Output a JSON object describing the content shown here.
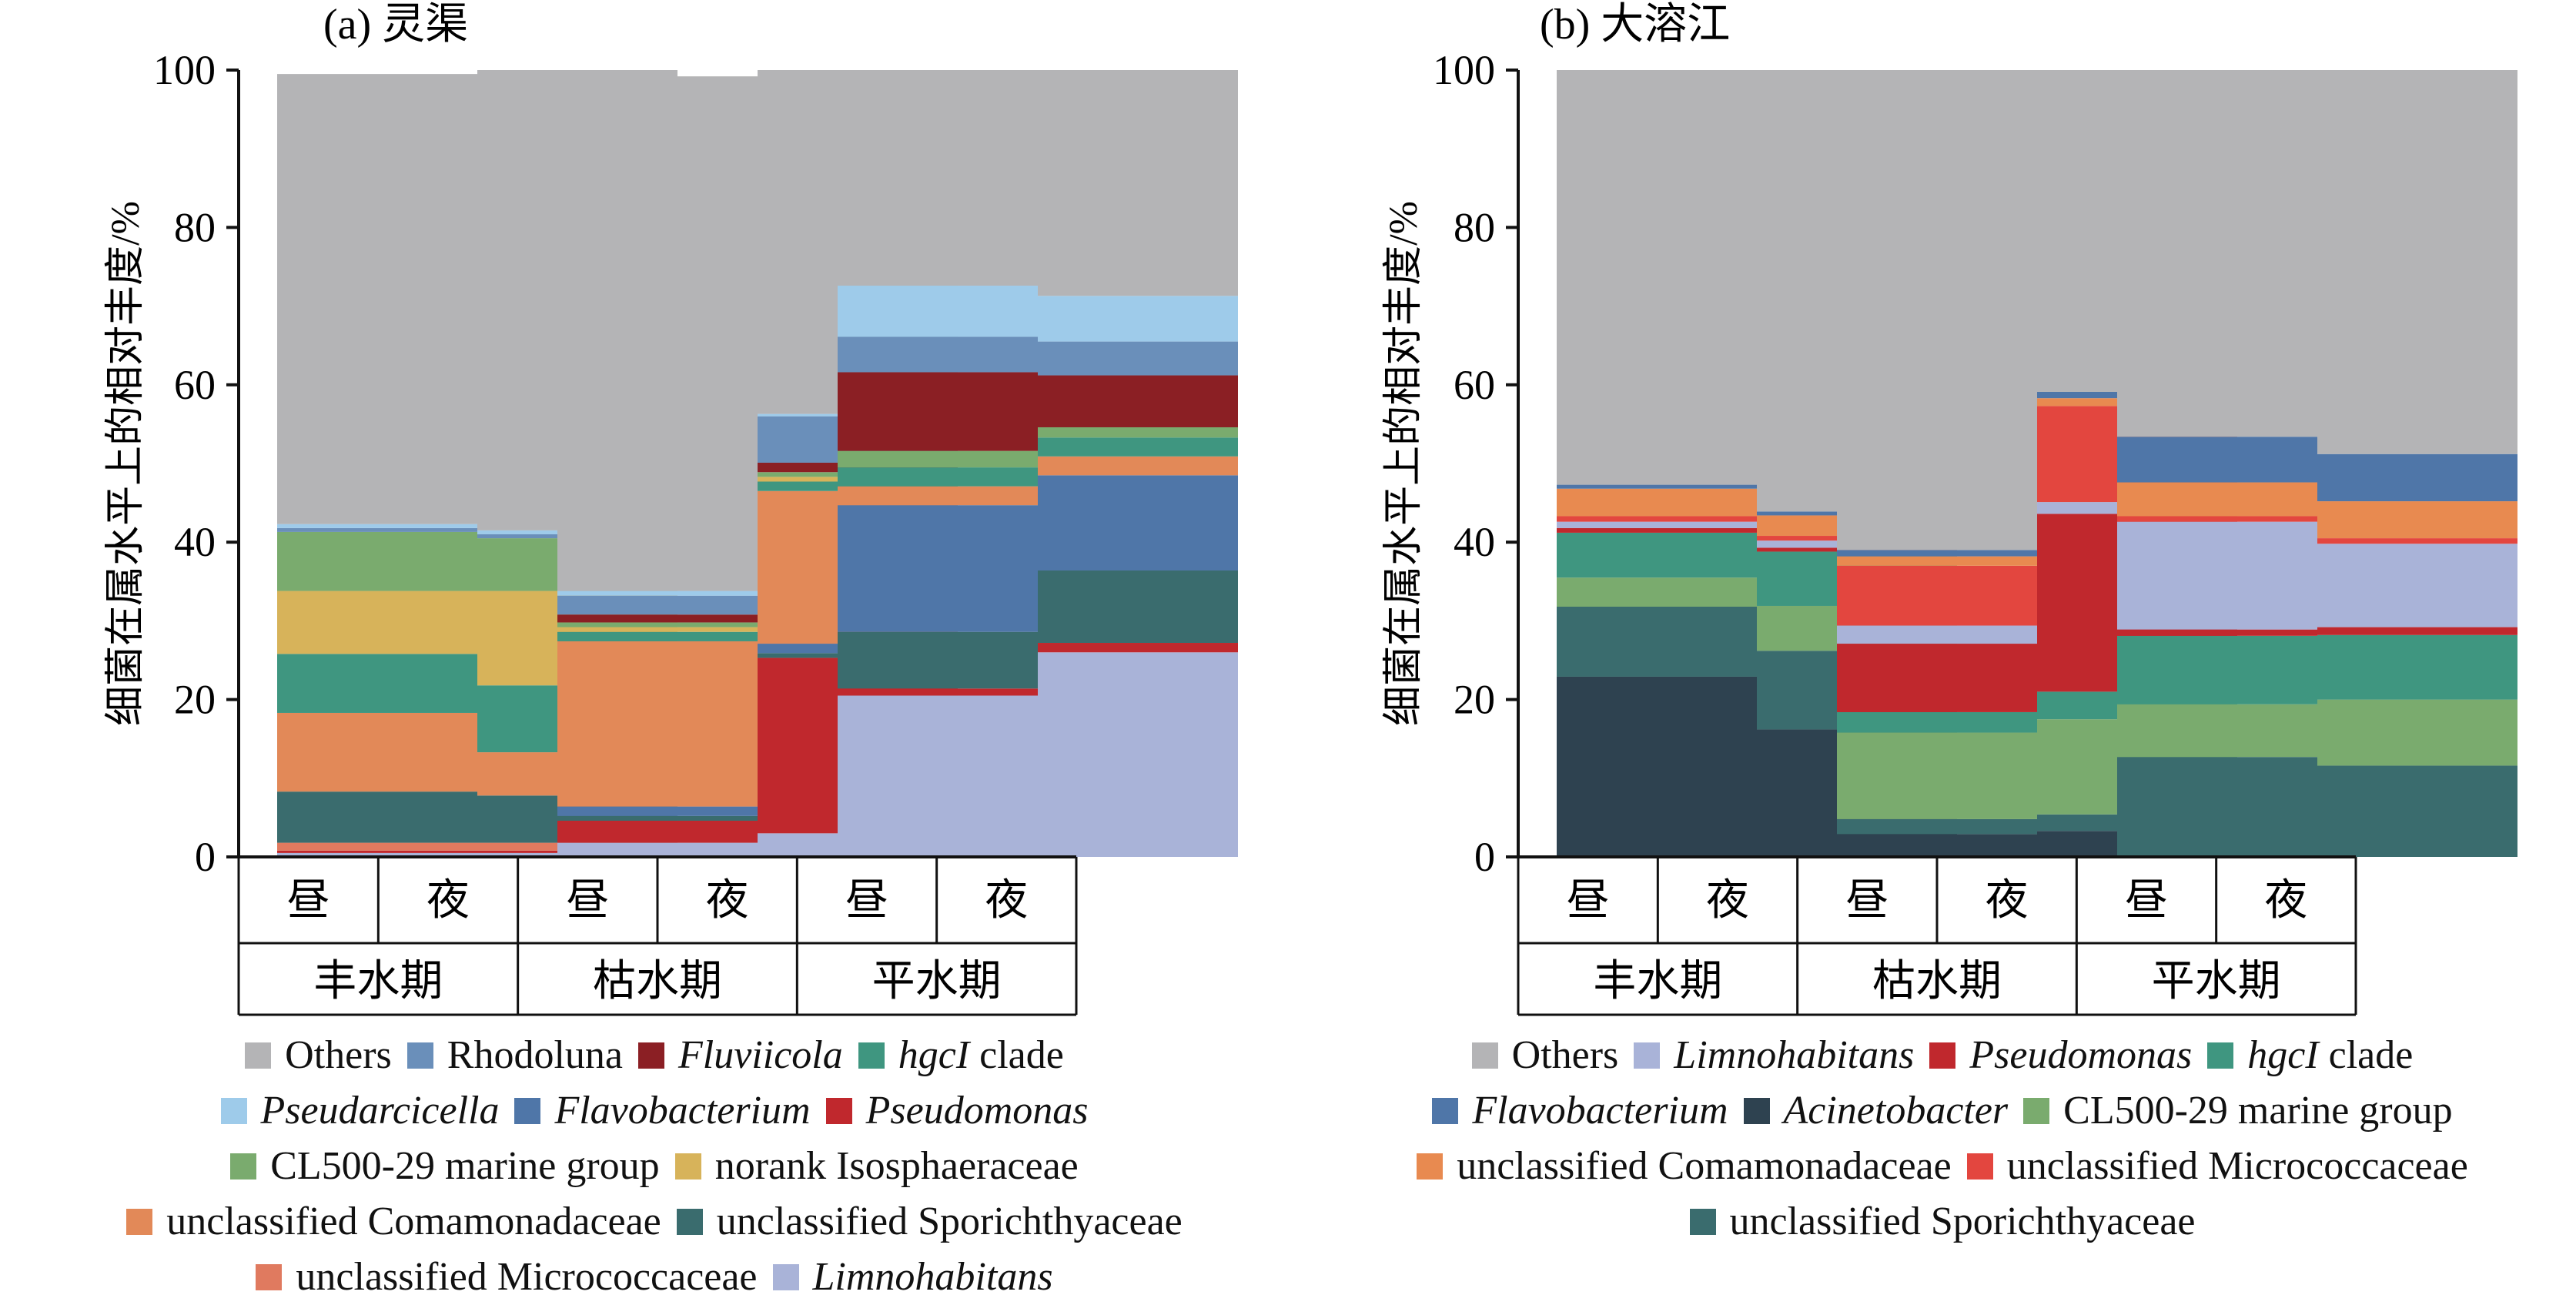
{
  "chart_data": [
    {
      "type": "bar",
      "stacked": true,
      "title": "(a) 灵渠",
      "ylabel": "细菌在属水平上的相对丰度/%",
      "ylim": [
        0,
        100
      ],
      "yticks": [
        "0",
        "20",
        "40",
        "60",
        "80",
        "100"
      ],
      "categories": [
        "昼",
        "夜",
        "昼",
        "夜",
        "昼",
        "夜"
      ],
      "groups": [
        "丰水期",
        "枯水期",
        "平水期"
      ],
      "series": [
        {
          "name": "Limnohabitans",
          "italic": true,
          "color": "#a9b3d8",
          "values": [
            0.5,
            0.5,
            1.8,
            3.0,
            20.5,
            26.0
          ]
        },
        {
          "name": "Pseudomonas",
          "italic": true,
          "color": "#c0282d",
          "values": [
            0.3,
            0.3,
            2.8,
            22.3,
            0.9,
            1.2
          ]
        },
        {
          "name": "unclassified Micrococcaceae",
          "italic": false,
          "color": "#e07a5f",
          "values": [
            1.0,
            1.0,
            0,
            0,
            0,
            0
          ]
        },
        {
          "name": "unclassified Sporichthyaceae",
          "italic": false,
          "color": "#3a6c6e",
          "values": [
            6.5,
            6.0,
            0.6,
            0.6,
            7.2,
            9.2
          ]
        },
        {
          "name": "Flavobacterium",
          "italic": true,
          "color": "#4f76a8",
          "values": [
            0,
            0,
            1.2,
            1.2,
            16.1,
            12.1
          ]
        },
        {
          "name": "unclassified Comamonadaceae",
          "italic": false,
          "color": "#e28958",
          "values": [
            10.0,
            5.5,
            21.0,
            19.4,
            2.4,
            2.4
          ]
        },
        {
          "name": "hgcI clade",
          "italic": true,
          "color": "#3f9680",
          "values": [
            7.5,
            8.5,
            1.2,
            1.2,
            2.4,
            2.4
          ]
        },
        {
          "name": "norank Isosphaeraceae",
          "italic": false,
          "color": "#d7b35a",
          "values": [
            8.0,
            12.0,
            0.6,
            0.6,
            0,
            0
          ]
        },
        {
          "name": "CL500-29 marine group",
          "italic": false,
          "color": "#7aab6e",
          "values": [
            7.5,
            6.7,
            0.6,
            0.6,
            2.1,
            1.3
          ]
        },
        {
          "name": "Fluviicola",
          "italic": true,
          "color": "#8b1f24",
          "values": [
            0,
            0,
            1.0,
            1.2,
            10.0,
            6.6
          ]
        },
        {
          "name": "Rhodoluna",
          "italic": false,
          "color": "#6a8fba",
          "values": [
            0.5,
            0.5,
            2.4,
            5.9,
            4.5,
            4.3
          ]
        },
        {
          "name": "Pseudarcicella",
          "italic": true,
          "color": "#9ecbea",
          "values": [
            0.5,
            0.5,
            0.6,
            0.3,
            6.5,
            5.8
          ]
        },
        {
          "name": "Others",
          "italic": false,
          "color": "#b4b4b6",
          "values": [
            57.2,
            58.5,
            65.4,
            43.7,
            27.4,
            28.7
          ]
        }
      ],
      "legend": [
        [
          "Others",
          "Rhodoluna",
          "Fluviicola",
          "hgcI clade"
        ],
        [
          "Pseudarcicella",
          "Flavobacterium",
          "Pseudomonas"
        ],
        [
          "CL500-29 marine group",
          "norank Isosphaeraceae"
        ],
        [
          "unclassified Comamonadaceae",
          "unclassified Sporichthyaceae"
        ],
        [
          "unclassified Micrococcaceae",
          "Limnohabitans"
        ]
      ]
    },
    {
      "type": "bar",
      "stacked": true,
      "title": "(b) 大溶江",
      "ylabel": "细菌在属水平上的相对丰度/%",
      "ylim": [
        0,
        100
      ],
      "yticks": [
        "0",
        "20",
        "40",
        "60",
        "80",
        "100"
      ],
      "categories": [
        "昼",
        "夜",
        "昼",
        "夜",
        "昼",
        "夜"
      ],
      "groups": [
        "丰水期",
        "枯水期",
        "平水期"
      ],
      "series": [
        {
          "name": "Acinetobacter",
          "italic": true,
          "color": "#2e4250",
          "values": [
            22.9,
            16.2,
            2.9,
            3.3,
            0,
            0
          ]
        },
        {
          "name": "unclassified Sporichthyaceae",
          "italic": false,
          "color": "#3a6c6e",
          "values": [
            8.9,
            10.0,
            1.9,
            2.1,
            12.7,
            11.6
          ]
        },
        {
          "name": "CL500-29 marine group",
          "italic": false,
          "color": "#7aab6e",
          "values": [
            3.7,
            5.7,
            11.0,
            12.1,
            6.7,
            8.4
          ]
        },
        {
          "name": "hgcI clade",
          "italic": true,
          "color": "#3f9680",
          "values": [
            5.7,
            6.9,
            2.6,
            3.5,
            8.7,
            8.2
          ]
        },
        {
          "name": "Pseudomonas",
          "italic": true,
          "color": "#c0282d",
          "values": [
            0.6,
            0.5,
            8.7,
            22.6,
            0.8,
            1.0
          ]
        },
        {
          "name": "Limnohabitans",
          "italic": true,
          "color": "#a9b3d8",
          "values": [
            0.8,
            0.9,
            2.3,
            1.5,
            13.7,
            10.6
          ]
        },
        {
          "name": "unclassified Micrococcaceae",
          "italic": false,
          "color": "#e3463f",
          "values": [
            0.7,
            0.6,
            7.6,
            12.2,
            0.7,
            0.7
          ]
        },
        {
          "name": "unclassified Comamonadaceae",
          "italic": false,
          "color": "#e88a50",
          "values": [
            3.5,
            2.6,
            1.2,
            1.0,
            4.3,
            4.7
          ]
        },
        {
          "name": "Flavobacterium",
          "italic": true,
          "color": "#4f76a8",
          "values": [
            0.5,
            0.5,
            0.8,
            0.8,
            5.8,
            6.0
          ]
        },
        {
          "name": "Others",
          "italic": false,
          "color": "#b4b4b6",
          "values": [
            52.7,
            56.1,
            61.0,
            40.9,
            46.6,
            48.8
          ]
        }
      ],
      "legend": [
        [
          "Others",
          "Limnohabitans",
          "Pseudomonas",
          "hgcI clade"
        ],
        [
          "Flavobacterium",
          "Acinetobacter",
          "CL500-29 marine group"
        ],
        [
          "unclassified Comamonadaceae",
          "unclassified Micrococcaceae"
        ],
        [
          "unclassified Sporichthyaceae"
        ]
      ]
    }
  ]
}
